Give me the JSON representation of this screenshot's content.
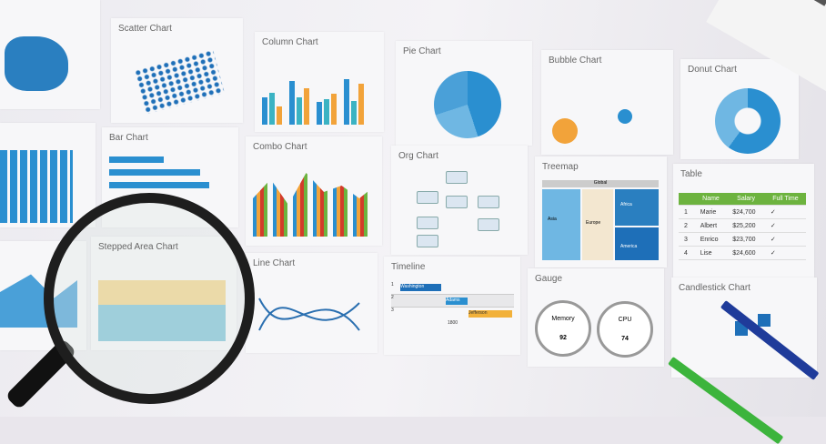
{
  "cards": {
    "scatter": "Scatter Chart",
    "column": "Column Chart",
    "pie": "Pie Chart",
    "bubble": "Bubble Chart",
    "donut": "Donut Chart",
    "bar": "Bar Chart",
    "combo": "Combo Chart",
    "org": "Org Chart",
    "treemap": "Treemap",
    "table": "Table",
    "stepped": "Stepped Area Chart",
    "line": "Line Chart",
    "timeline": "Timeline",
    "gauge": "Gauge",
    "candlestick": "Candlestick Chart"
  },
  "table": {
    "headers": [
      "",
      "Name",
      "Salary",
      "Full Time"
    ],
    "rows": [
      [
        "1",
        "Marie",
        "$24,700",
        "✓"
      ],
      [
        "2",
        "Albert",
        "$25,200",
        "✓"
      ],
      [
        "3",
        "Enrico",
        "$23,700",
        "✓"
      ],
      [
        "4",
        "Lise",
        "$24,600",
        "✓"
      ]
    ]
  },
  "timeline": {
    "rows": [
      "1",
      "2",
      "3"
    ],
    "names": [
      "Washington",
      "Adams",
      "Jefferson"
    ],
    "axis": "1800"
  },
  "gauges": [
    {
      "label": "Memory",
      "value": "92"
    },
    {
      "label": "CPU",
      "value": "74"
    }
  ],
  "treemap": {
    "root": "Global",
    "cells": [
      "Asia",
      "Europe",
      "Africa",
      "America"
    ]
  },
  "colors": {
    "blue": "#2a8fd0",
    "teal": "#3bb3c3",
    "orange": "#f2a33a",
    "green": "#6db33f",
    "red": "#d23c2a"
  }
}
